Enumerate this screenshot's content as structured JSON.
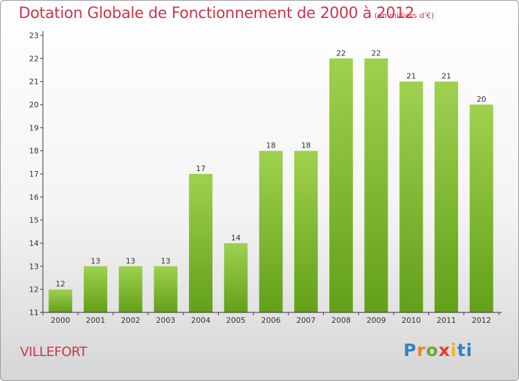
{
  "chart_data": {
    "type": "bar",
    "title": "Dotation Globale de Fonctionnement de 2000 à 2012",
    "subtitle": "(en milliers d'€)",
    "categories": [
      "2000",
      "2001",
      "2002",
      "2003",
      "2004",
      "2005",
      "2006",
      "2007",
      "2008",
      "2009",
      "2010",
      "2011",
      "2012"
    ],
    "values": [
      12,
      13,
      13,
      13,
      17,
      14,
      18,
      18,
      22,
      22,
      21,
      21,
      20
    ],
    "ylim": [
      11,
      23
    ],
    "yticks": [
      11,
      12,
      13,
      14,
      15,
      16,
      17,
      18,
      19,
      20,
      21,
      22,
      23
    ],
    "xlabel": "",
    "ylabel": "",
    "grid": false,
    "bar_color_top": "#9fd14f",
    "bar_color_bottom": "#63a019",
    "axis_color": "#333333"
  },
  "commune": "VILLEFORT",
  "logo": {
    "letters": [
      "P",
      "r",
      "o",
      "x",
      "i",
      "t",
      "i"
    ]
  },
  "colors": {
    "title": "#d0344a",
    "text": "#333333"
  }
}
